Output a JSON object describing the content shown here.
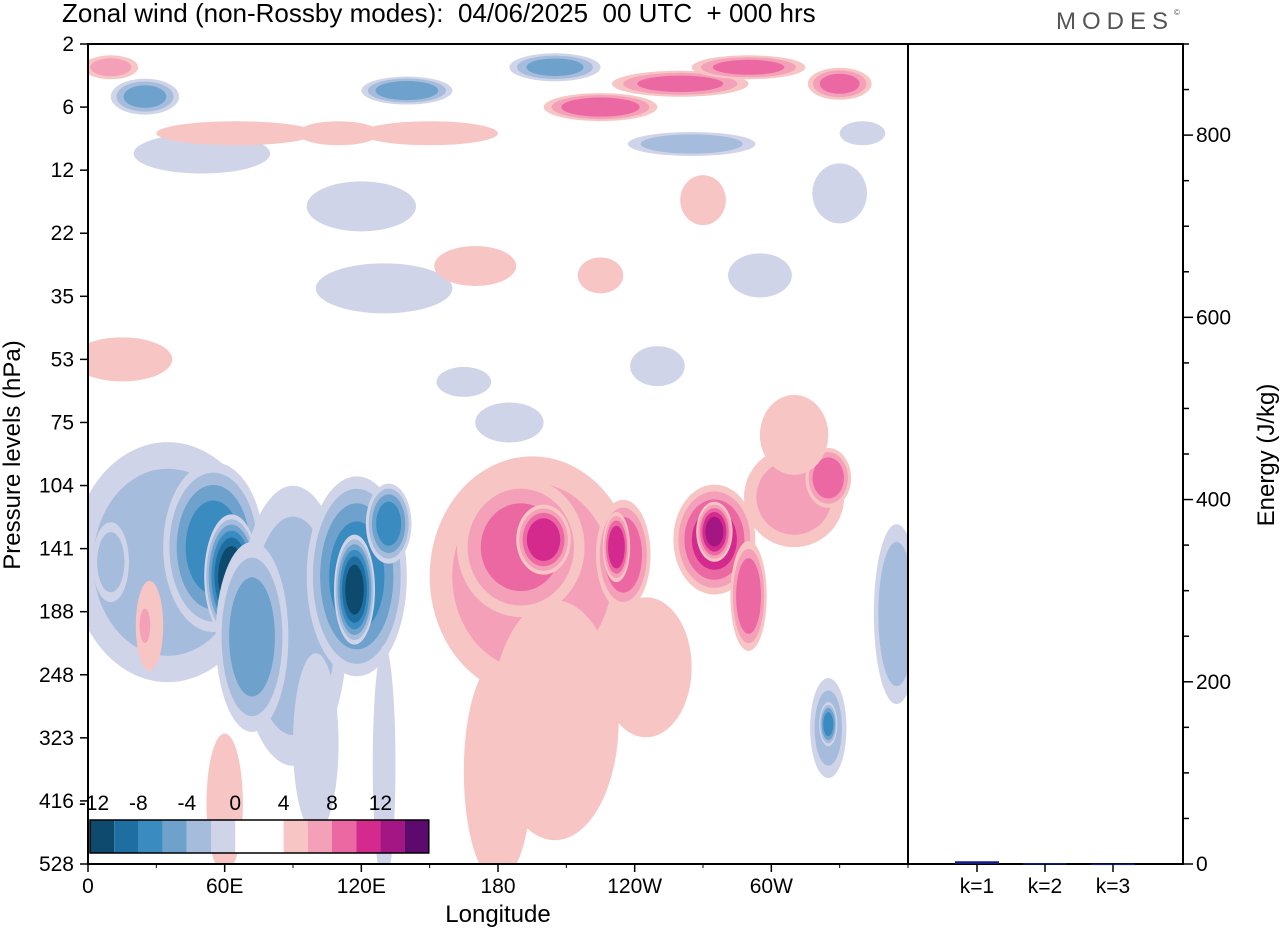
{
  "title": "Zonal wind (non-Rossby modes):  04/06/2025  00 UTC  + 000 hrs",
  "logo": "MODES",
  "logo_mark": "©",
  "colors": {
    "neg": [
      "#0d4a6e",
      "#1f6ea1",
      "#3a8bc0",
      "#6ea1cc",
      "#a6bcdc",
      "#d0d4e8"
    ],
    "zero": "#ffffff",
    "pos": [
      "#f6c5c4",
      "#f4a0b8",
      "#ec68a3",
      "#d42a8e",
      "#a31683",
      "#5d0a6e"
    ],
    "energy_bar": "#131a80"
  },
  "chart_data": [
    {
      "type": "heatmap",
      "variable": "Zonal wind (non-Rossby modes)",
      "xlabel": "Longitude",
      "ylabel": "Pressure levels (hPa)",
      "x_ticks": [
        "0",
        "60E",
        "120E",
        "180",
        "120W",
        "60W"
      ],
      "x_range_deg": [
        0,
        360
      ],
      "y_ticks": [
        "2",
        "6",
        "12",
        "22",
        "35",
        "53",
        "75",
        "104",
        "141",
        "188",
        "248",
        "323",
        "416",
        "528"
      ],
      "y_scale": "log",
      "colorbar_labels": [
        "-12",
        "-8",
        "-4",
        "0",
        "4",
        "8",
        "12"
      ],
      "contour_levels": [
        -14,
        -12,
        -10,
        -8,
        -6,
        -4,
        -2,
        0,
        2,
        4,
        6,
        8,
        10,
        12,
        14
      ],
      "features": [
        {
          "lon": 60,
          "hPa": 150,
          "value": -13
        },
        {
          "lon": 115,
          "hPa": 160,
          "value": -12
        },
        {
          "lon": 200,
          "hPa": 135,
          "value": 9
        },
        {
          "lon": 230,
          "hPa": 140,
          "value": 8
        },
        {
          "lon": 275,
          "hPa": 130,
          "value": 8
        },
        {
          "lon": 325,
          "hPa": 310,
          "value": -8
        },
        {
          "lon": 225,
          "hPa": 5,
          "value": 9
        },
        {
          "lon": 140,
          "hPa": 4,
          "value": -7
        }
      ],
      "grid": false
    },
    {
      "type": "bar",
      "categories": [
        "k=1",
        "k=2",
        "k=3"
      ],
      "values": [
        3,
        1,
        0.5
      ],
      "ylabel": "Energy (J/kg)",
      "y_ticks": [
        "0",
        "200",
        "400",
        "600",
        "800"
      ],
      "ylim": [
        0,
        900
      ]
    }
  ]
}
